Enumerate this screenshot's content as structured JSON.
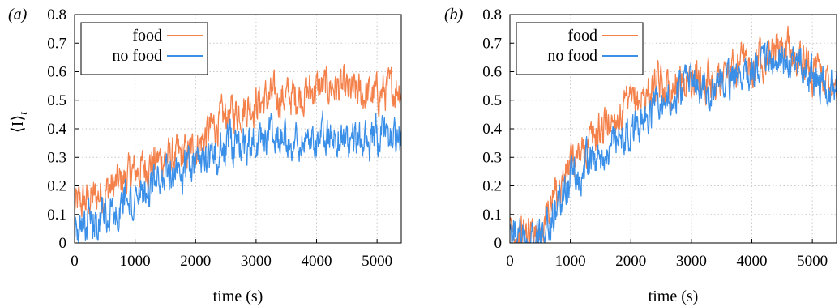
{
  "chart_data": [
    {
      "panel_label": "(a)",
      "type": "line",
      "xlabel": "time (s)",
      "ylabel": "⟨I⟩",
      "ylabel_subscript": "t",
      "xlim": [
        0,
        5400
      ],
      "ylim": [
        0,
        0.8
      ],
      "xticks": [
        0,
        1000,
        2000,
        3000,
        4000,
        5000
      ],
      "yticks": [
        0,
        0.1,
        0.2,
        0.3,
        0.4,
        0.5,
        0.6,
        0.7,
        0.8
      ],
      "grid": true,
      "legend_position": "top-left",
      "series": [
        {
          "name": "food",
          "color": "#f4804a",
          "x": [
            0,
            250,
            500,
            750,
            1000,
            1250,
            1500,
            1750,
            2000,
            2250,
            2500,
            2750,
            3000,
            3250,
            3500,
            3750,
            4000,
            4250,
            4500,
            4750,
            5000,
            5250,
            5400
          ],
          "y": [
            0.13,
            0.15,
            0.18,
            0.21,
            0.25,
            0.28,
            0.3,
            0.3,
            0.33,
            0.4,
            0.44,
            0.47,
            0.49,
            0.51,
            0.51,
            0.52,
            0.54,
            0.55,
            0.53,
            0.52,
            0.52,
            0.54,
            0.55
          ]
        },
        {
          "name": "no food",
          "color": "#3a8fe8",
          "x": [
            0,
            250,
            500,
            750,
            1000,
            1250,
            1500,
            1750,
            2000,
            2250,
            2500,
            2750,
            3000,
            3250,
            3500,
            3750,
            4000,
            4250,
            4500,
            4750,
            5000,
            5250,
            5400
          ],
          "y": [
            0.05,
            0.08,
            0.11,
            0.14,
            0.16,
            0.19,
            0.21,
            0.24,
            0.27,
            0.3,
            0.33,
            0.35,
            0.36,
            0.36,
            0.35,
            0.36,
            0.37,
            0.37,
            0.36,
            0.35,
            0.36,
            0.37,
            0.36
          ]
        }
      ]
    },
    {
      "panel_label": "(b)",
      "type": "line",
      "xlabel": "time (s)",
      "ylabel": "",
      "xlim": [
        0,
        5400
      ],
      "ylim": [
        0,
        0.8
      ],
      "xticks": [
        0,
        1000,
        2000,
        3000,
        4000,
        5000
      ],
      "yticks": [
        0,
        0.1,
        0.2,
        0.3,
        0.4,
        0.5,
        0.6,
        0.7,
        0.8
      ],
      "grid": true,
      "legend_position": "top-left",
      "series": [
        {
          "name": "food",
          "color": "#f4804a",
          "x": [
            0,
            250,
            500,
            750,
            1000,
            1250,
            1500,
            1750,
            2000,
            2250,
            2500,
            2750,
            3000,
            3250,
            3500,
            3750,
            4000,
            4250,
            4500,
            4750,
            5000,
            5250,
            5400
          ],
          "y": [
            0.03,
            0.03,
            0.05,
            0.17,
            0.27,
            0.33,
            0.4,
            0.44,
            0.48,
            0.52,
            0.55,
            0.56,
            0.57,
            0.57,
            0.58,
            0.6,
            0.64,
            0.67,
            0.68,
            0.65,
            0.6,
            0.57,
            0.57
          ]
        },
        {
          "name": "no food",
          "color": "#3a8fe8",
          "x": [
            0,
            250,
            500,
            750,
            1000,
            1250,
            1500,
            1750,
            2000,
            2250,
            2500,
            2750,
            3000,
            3250,
            3500,
            3750,
            4000,
            4250,
            4500,
            4750,
            5000,
            5250,
            5400
          ],
          "y": [
            0.02,
            0.02,
            0.03,
            0.12,
            0.2,
            0.27,
            0.32,
            0.36,
            0.39,
            0.43,
            0.48,
            0.53,
            0.56,
            0.55,
            0.55,
            0.57,
            0.6,
            0.63,
            0.64,
            0.62,
            0.58,
            0.55,
            0.54
          ]
        }
      ]
    }
  ]
}
